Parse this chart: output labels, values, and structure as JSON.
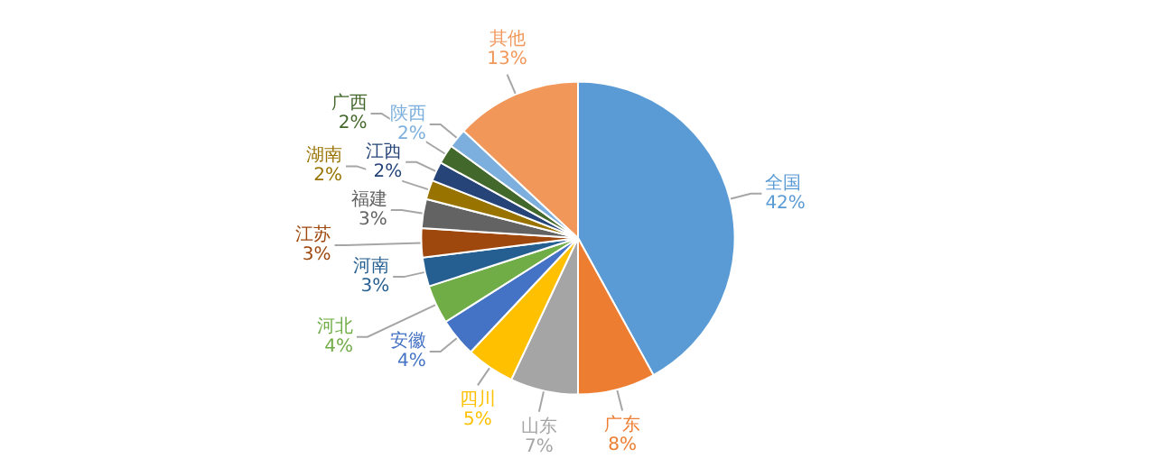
{
  "chart_data": {
    "type": "pie",
    "categories": [
      "全国",
      "广东",
      "山东",
      "四川",
      "安徽",
      "河北",
      "河南",
      "江苏",
      "福建",
      "湖南",
      "江西",
      "广西",
      "陕西",
      "其他"
    ],
    "values": [
      42,
      8,
      7,
      5,
      4,
      4,
      3,
      3,
      3,
      2,
      2,
      2,
      2,
      13
    ],
    "value_labels": [
      "42%",
      "8%",
      "7%",
      "5%",
      "4%",
      "4%",
      "3%",
      "3%",
      "3%",
      "2%",
      "2%",
      "2%",
      "2%",
      "13%"
    ],
    "colors": [
      "#5b9bd5",
      "#ed7d31",
      "#a5a5a5",
      "#ffc000",
      "#4472c4",
      "#70ad47",
      "#255e91",
      "#9e480e",
      "#636363",
      "#997300",
      "#264478",
      "#43682b",
      "#7cafdd",
      "#f1975a"
    ],
    "legend": false
  }
}
